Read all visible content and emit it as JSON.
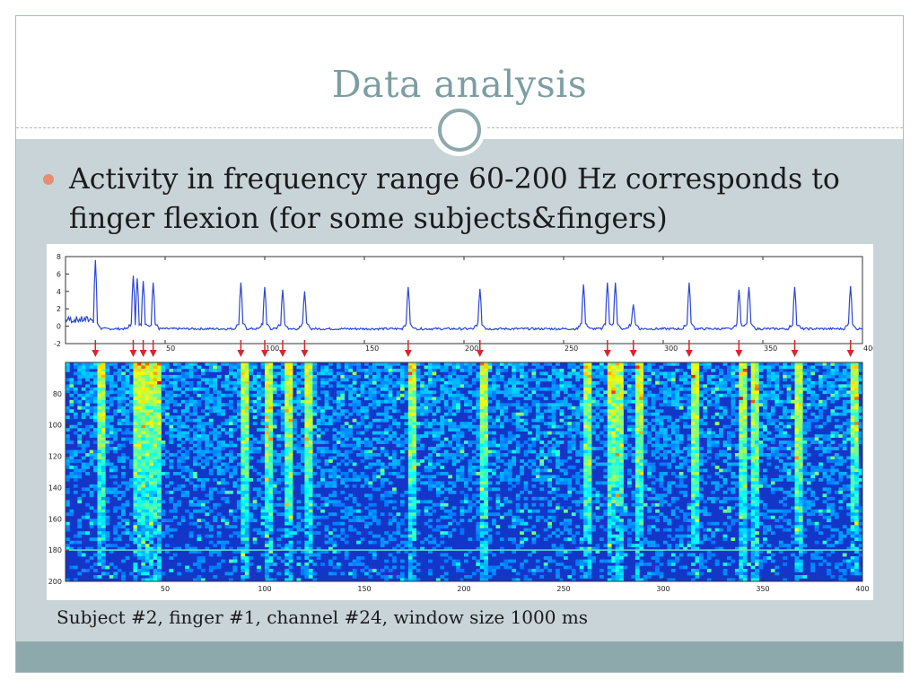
{
  "slide": {
    "title": "Data analysis",
    "bullet": "Activity in frequency range 60-200 Hz corresponds to finger flexion (for some subjects&fingers)",
    "caption": "Subject #2, finger #1, channel #24, window size 1000 ms"
  },
  "colors": {
    "title": "#7b9ea3",
    "accent": "#8ea9ab",
    "bullet": "#e88d72",
    "content_bg": "#c9d4d8",
    "trace": "#2b45d6",
    "arrow": "#d9262a"
  },
  "chart_data": [
    {
      "type": "line",
      "xlim": [
        0,
        400
      ],
      "ylim": [
        -2,
        8
      ],
      "x_ticks": [
        50,
        100,
        150,
        200,
        250,
        300,
        350,
        400
      ],
      "y_ticks": [
        -2,
        0,
        2,
        4,
        6,
        8
      ],
      "grid": false,
      "series": [
        {
          "peaks": [
            {
              "x": 15,
              "y": 7.6
            },
            {
              "x": 34,
              "y": 5.8
            },
            {
              "x": 36,
              "y": 5.5
            },
            {
              "x": 39,
              "y": 5.2
            },
            {
              "x": 44,
              "y": 5.0
            },
            {
              "x": 88,
              "y": 5.0
            },
            {
              "x": 100,
              "y": 4.5
            },
            {
              "x": 109,
              "y": 4.2
            },
            {
              "x": 120,
              "y": 4.0
            },
            {
              "x": 172,
              "y": 4.5
            },
            {
              "x": 208,
              "y": 4.3
            },
            {
              "x": 260,
              "y": 4.8
            },
            {
              "x": 272,
              "y": 5.0
            },
            {
              "x": 276,
              "y": 5.0
            },
            {
              "x": 285,
              "y": 2.5
            },
            {
              "x": 313,
              "y": 5.0
            },
            {
              "x": 338,
              "y": 4.2
            },
            {
              "x": 343,
              "y": 4.5
            },
            {
              "x": 366,
              "y": 4.5
            },
            {
              "x": 394,
              "y": 4.6
            }
          ],
          "baseline": -0.3
        }
      ],
      "flexion_markers_x": [
        15,
        34,
        39,
        44,
        88,
        100,
        109,
        120,
        172,
        208,
        272,
        285,
        313,
        338,
        366,
        394
      ]
    },
    {
      "type": "heatmap",
      "xlim": [
        0,
        400
      ],
      "ylim": [
        60,
        200
      ],
      "x_ticks": [
        50,
        100,
        150,
        200,
        250,
        300,
        350,
        400
      ],
      "y_ticks": [
        80,
        100,
        120,
        140,
        160,
        180,
        200
      ],
      "highlight_row_hz": 180,
      "colormap": "jet"
    }
  ]
}
